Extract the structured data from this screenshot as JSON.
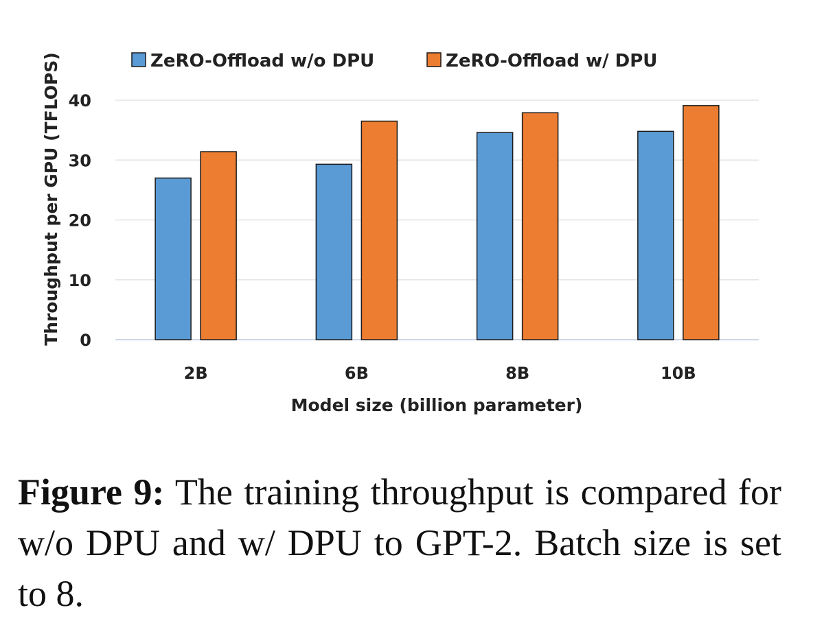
{
  "chart_data": {
    "type": "bar",
    "categories": [
      "2B",
      "6B",
      "8B",
      "10B"
    ],
    "series": [
      {
        "name": "ZeRO-Offload w/o DPU",
        "values": [
          27.0,
          29.3,
          34.6,
          34.8
        ],
        "color": "#5b9bd5"
      },
      {
        "name": "ZeRO-Offload w/ DPU",
        "values": [
          31.4,
          36.5,
          37.9,
          39.1
        ],
        "color": "#ed7d31"
      }
    ],
    "xlabel": "Model size (billion parameter)",
    "ylabel": "Throughput per GPU (TFLOPS)",
    "ylim": [
      0,
      40
    ],
    "yticks": [
      0,
      10,
      20,
      30,
      40
    ],
    "grid": true,
    "legend_position": "top"
  },
  "caption": {
    "label": "Figure 9:",
    "text": "The training throughput is compared for w/o DPU and w/ DPU to GPT-2. Batch size is set to 8."
  }
}
